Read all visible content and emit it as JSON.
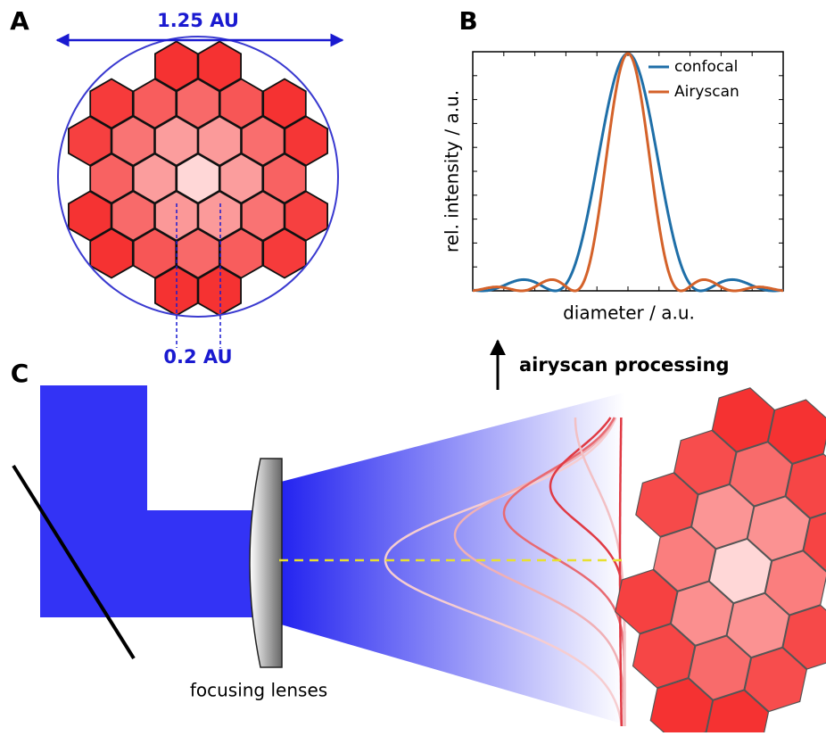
{
  "panels": {
    "a": {
      "label": "A",
      "width_label": "1.25 AU",
      "pixel_label": "0.2 AU"
    },
    "b": {
      "label": "B",
      "y_label": "rel. intensity / a.u.",
      "x_label": "diameter / a.u.",
      "legend": [
        {
          "name": "confocal",
          "color": "#1f6fa8"
        },
        {
          "name": "Airyscan",
          "color": "#d4622a"
        }
      ]
    },
    "c": {
      "label": "C",
      "process_label": "airyscan processing",
      "lens_label": "focusing lenses"
    }
  }
}
